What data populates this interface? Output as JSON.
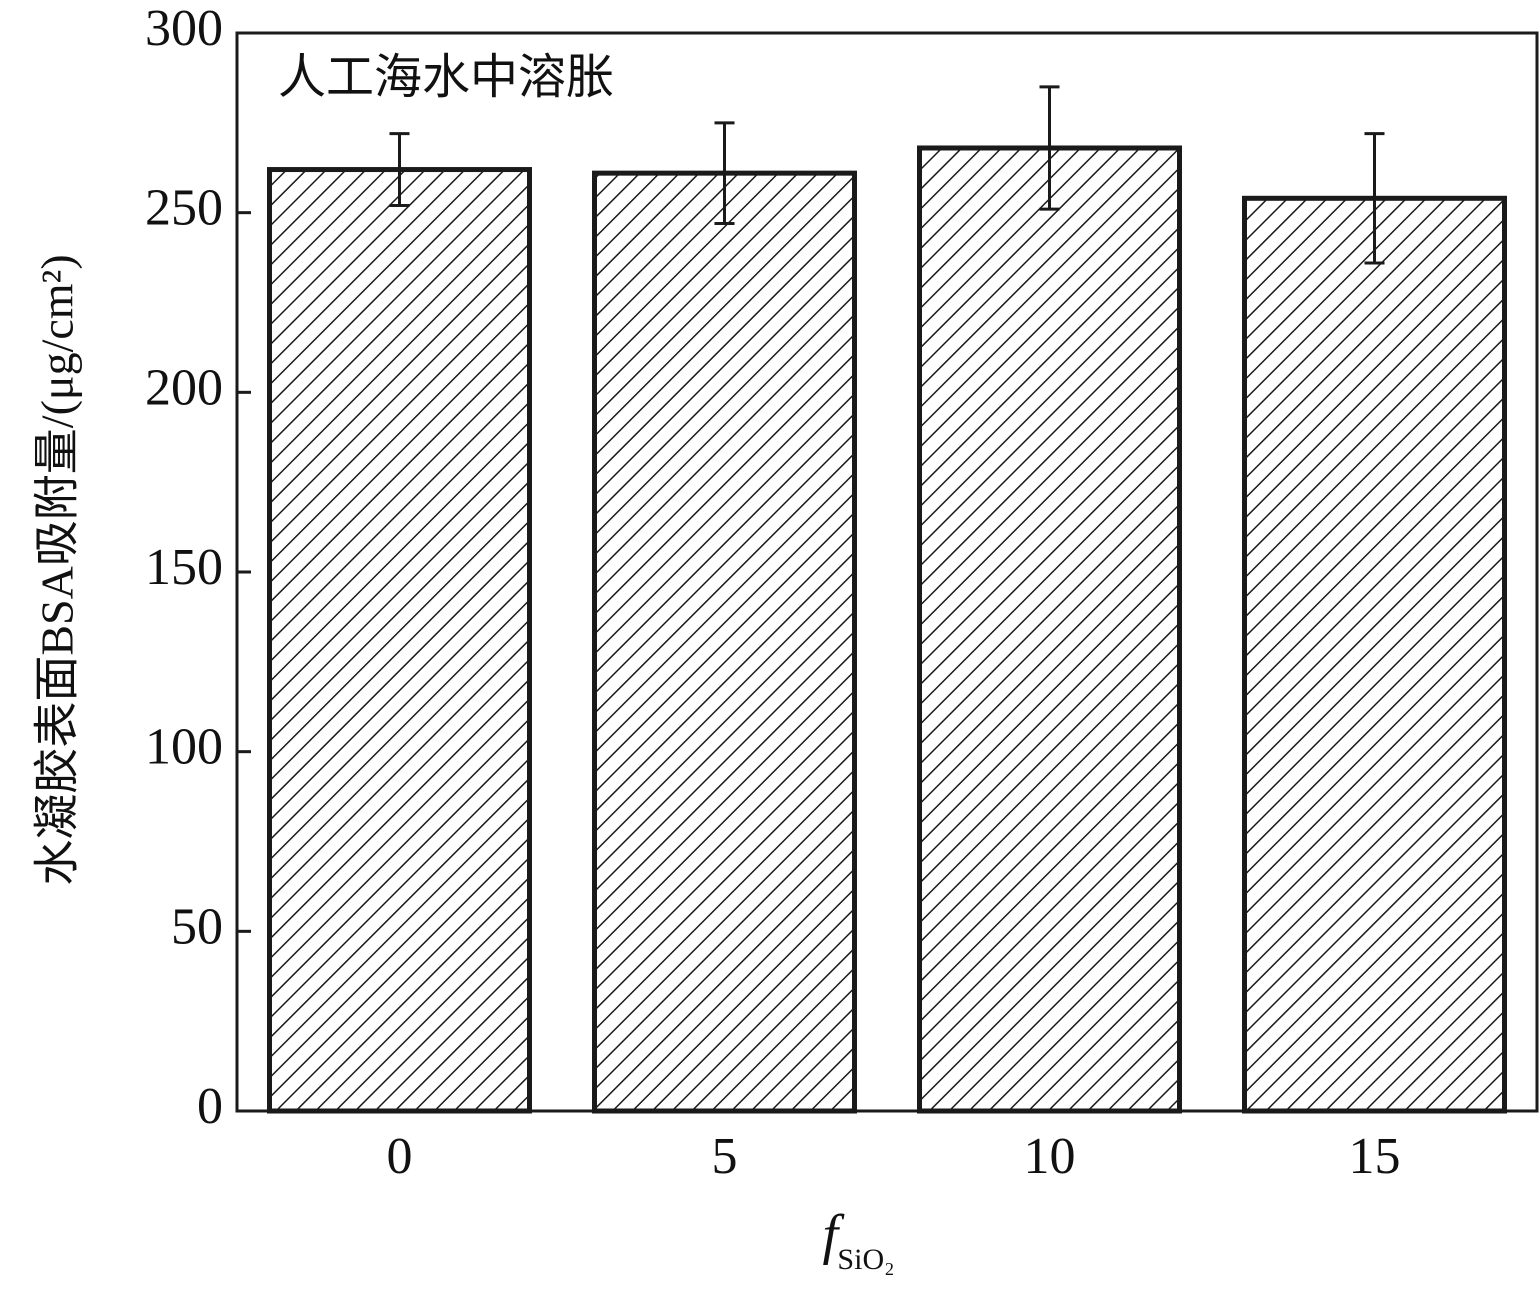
{
  "chart_data": {
    "type": "bar",
    "annotation": "人工海水中溶胀",
    "y_label": "水凝胶表面BSA吸附量/(μg/cm²)",
    "x_label": "f",
    "x_label_subscript": "SiO₂",
    "categories": [
      "0",
      "5",
      "10",
      "15"
    ],
    "values": [
      262,
      261,
      268,
      254
    ],
    "errors": [
      10,
      14,
      17,
      18
    ],
    "color": "#1a1a1a",
    "ylim": [
      0,
      300
    ],
    "yticks": [
      0,
      50,
      100,
      150,
      200,
      250,
      300
    ]
  }
}
